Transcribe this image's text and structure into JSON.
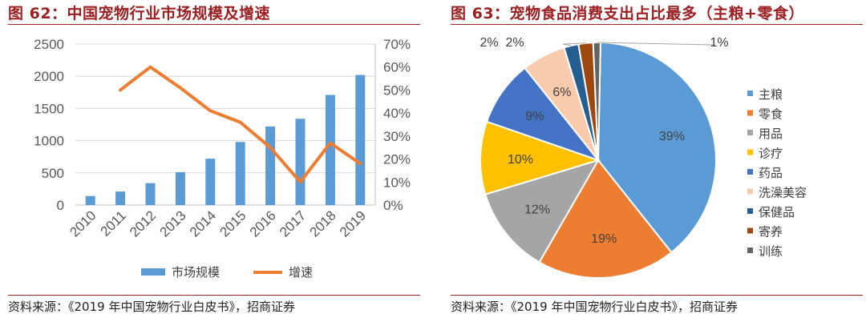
{
  "source_text": "资料来源：《2019 年中国宠物行业白皮书》，招商证券",
  "chart_data": [
    {
      "type": "bar",
      "title": "图 62：中国宠物行业市场规模及增速",
      "categories": [
        "2010",
        "2011",
        "2012",
        "2013",
        "2014",
        "2015",
        "2016",
        "2017",
        "2018",
        "2019"
      ],
      "series": [
        {
          "name": "市场规模",
          "type": "bar",
          "axis": "left",
          "color": "#5b9bd5",
          "values": [
            140,
            210,
            340,
            510,
            720,
            980,
            1220,
            1340,
            1710,
            2020
          ]
        },
        {
          "name": "增速",
          "type": "line",
          "axis": "right",
          "color": "#ed7d31",
          "values": [
            null,
            0.5,
            0.6,
            0.51,
            0.41,
            0.36,
            0.25,
            0.1,
            0.27,
            0.18
          ]
        }
      ],
      "y_left": {
        "ylim": [
          0,
          2500
        ],
        "ticks": [
          "0",
          "500",
          "1000",
          "1500",
          "2000",
          "2500"
        ]
      },
      "y_right": {
        "ylim": [
          0,
          0.7
        ],
        "ticks": [
          "0%",
          "10%",
          "20%",
          "30%",
          "40%",
          "50%",
          "60%",
          "70%"
        ]
      },
      "grid": true,
      "legend_position": "bottom",
      "legend": [
        "市场规模",
        "增速"
      ]
    },
    {
      "type": "pie",
      "title": "图 63：宠物食品消费支出占比最多（主粮+零食）",
      "slices": [
        {
          "name": "主粮",
          "value": 39,
          "label": "39%",
          "color": "#5b9bd5"
        },
        {
          "name": "零食",
          "value": 19,
          "label": "19%",
          "color": "#ed7d31"
        },
        {
          "name": "用品",
          "value": 12,
          "label": "12%",
          "color": "#a5a5a5"
        },
        {
          "name": "诊疗",
          "value": 10,
          "label": "10%",
          "color": "#ffc000"
        },
        {
          "name": "药品",
          "value": 9,
          "label": "9%",
          "color": "#4472c4"
        },
        {
          "name": "洗澡美容",
          "value": 6,
          "label": "6%",
          "color": "#f8cbad"
        },
        {
          "name": "保健品",
          "value": 2,
          "label": "2%",
          "color": "#255e91"
        },
        {
          "name": "寄养",
          "value": 2,
          "label": "2%",
          "color": "#9e480e"
        },
        {
          "name": "训练",
          "value": 1,
          "label": "1%",
          "color": "#636363"
        }
      ],
      "legend_position": "right"
    }
  ]
}
